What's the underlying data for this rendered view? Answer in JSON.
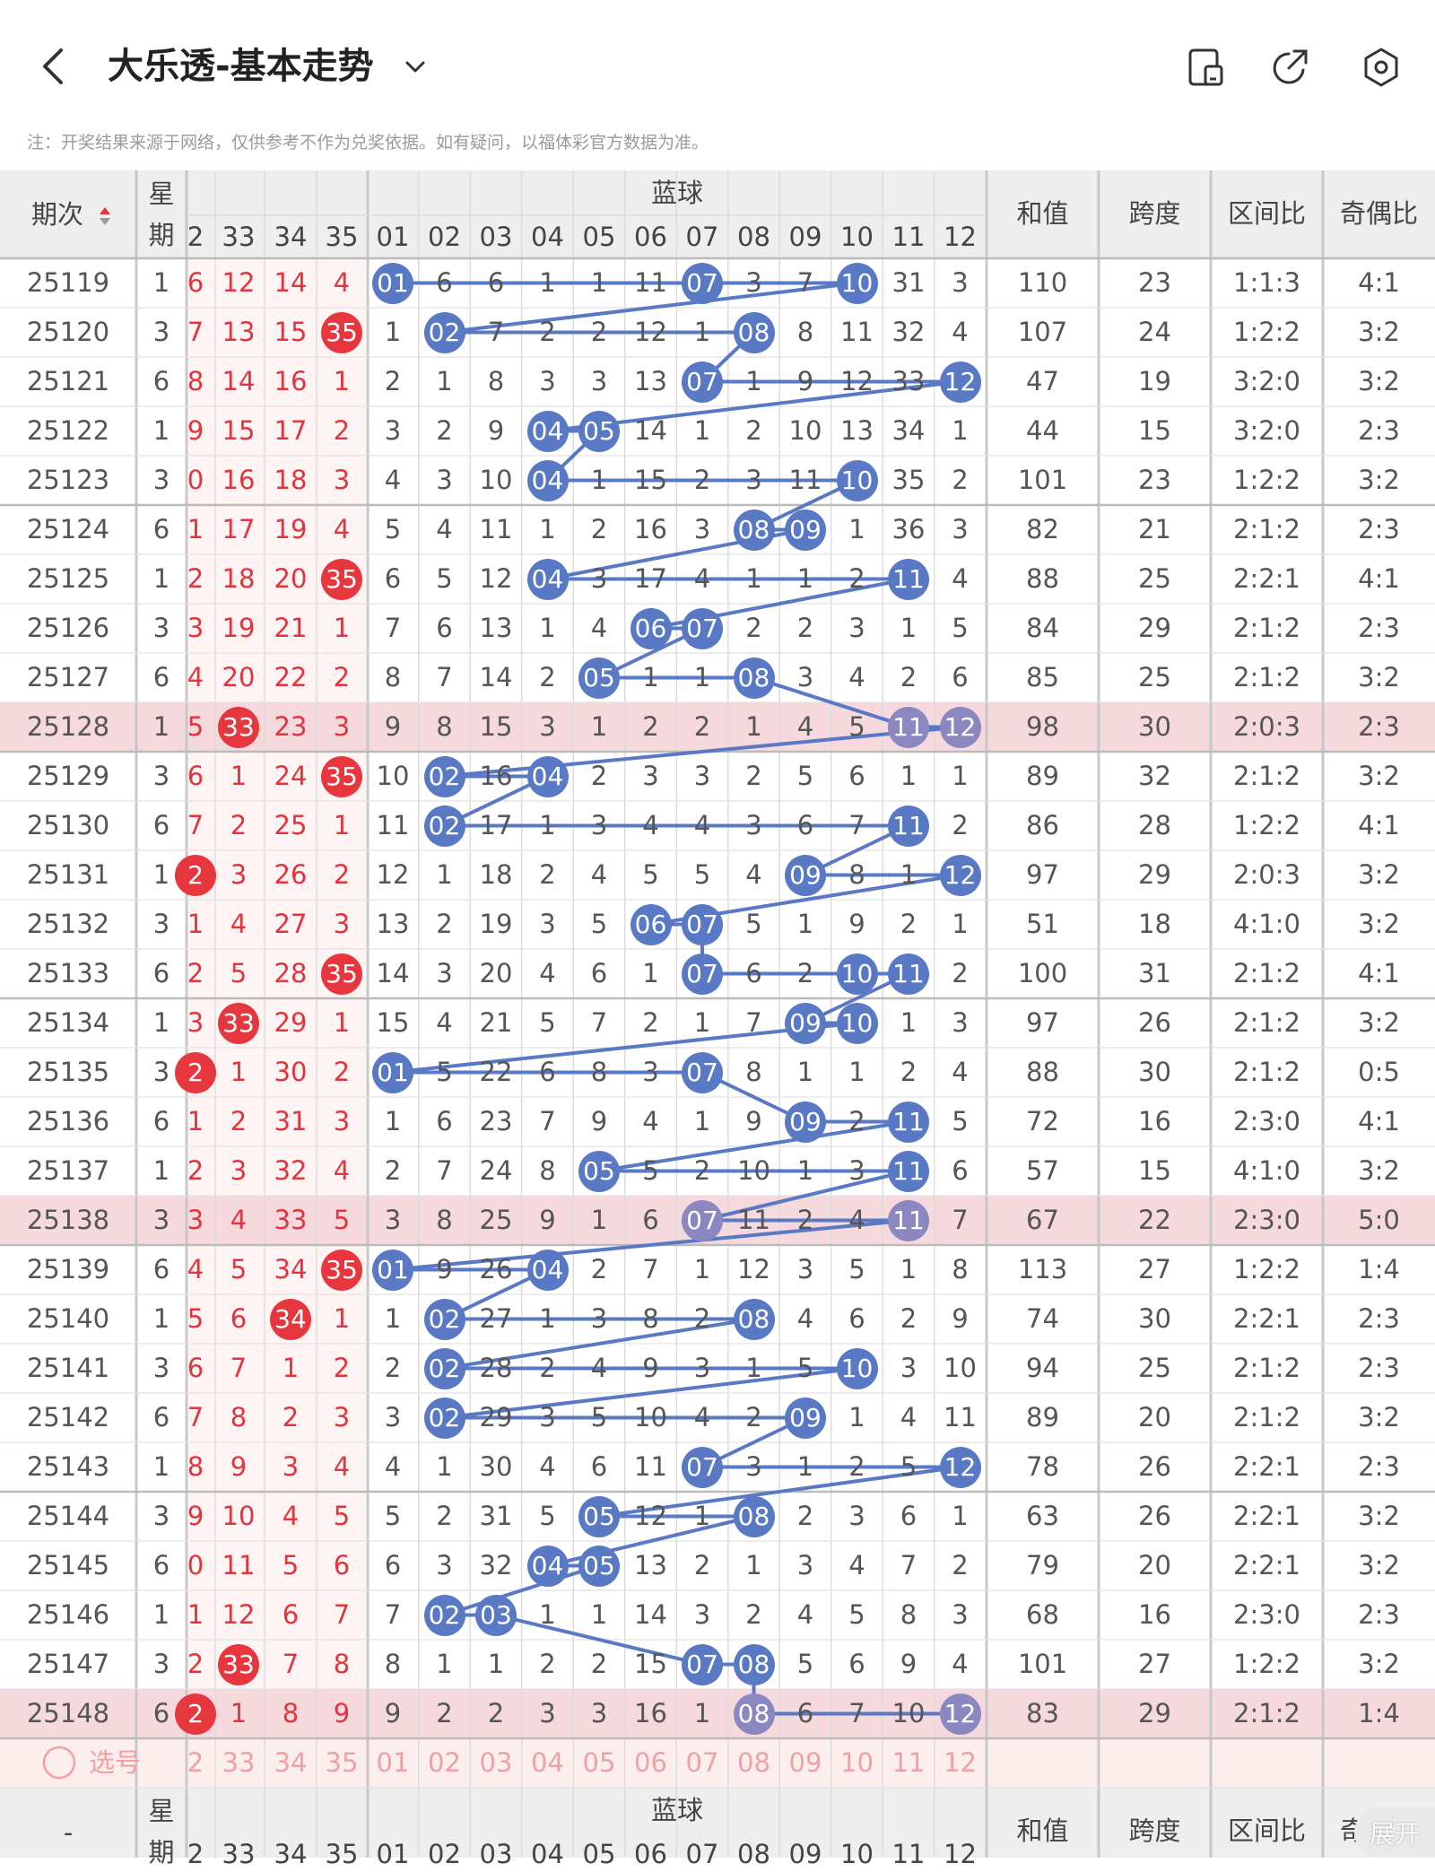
{
  "header": {
    "title": "大乐透-基本走势",
    "back_icon": "chevron-left-icon",
    "dropdown_icon": "chevron-down-icon",
    "icons": [
      "doc-icon",
      "share-icon",
      "settings-icon"
    ]
  },
  "note": "注：开奖结果来源于网络，仅供参考不作为兑奖依据。如有疑问，以福体彩官方数据为准。",
  "table": {
    "col_issue": "期次",
    "col_week": "星期",
    "blue_group": "蓝球",
    "red_partial_headers": [
      "2",
      "33",
      "34",
      "35"
    ],
    "blue_headers": [
      "01",
      "02",
      "03",
      "04",
      "05",
      "06",
      "07",
      "08",
      "09",
      "10",
      "11",
      "12"
    ],
    "col_sum": "和值",
    "col_span": "跨度",
    "col_zone": "区间比",
    "col_odd": "奇偶比",
    "rows": [
      {
        "issue": "25119",
        "week": "1",
        "red": [
          "6",
          "12",
          "14",
          "4"
        ],
        "blue": [
          "01",
          "6",
          "6",
          "1",
          "1",
          "11",
          "07",
          "3",
          "7",
          "10",
          "31",
          "3"
        ],
        "sum": "110",
        "span": "23",
        "zone": "1:1:3",
        "odd": "4:1"
      },
      {
        "issue": "25120",
        "week": "3",
        "red": [
          "7",
          "13",
          "15",
          "35"
        ],
        "blue": [
          "1",
          "02",
          "7",
          "2",
          "2",
          "12",
          "1",
          "08",
          "8",
          "11",
          "32",
          "4"
        ],
        "sum": "107",
        "span": "24",
        "zone": "1:2:2",
        "odd": "3:2"
      },
      {
        "issue": "25121",
        "week": "6",
        "red": [
          "8",
          "14",
          "16",
          "1"
        ],
        "blue": [
          "2",
          "1",
          "8",
          "3",
          "3",
          "13",
          "07",
          "1",
          "9",
          "12",
          "33",
          "12"
        ],
        "sum": "47",
        "span": "19",
        "zone": "3:2:0",
        "odd": "3:2"
      },
      {
        "issue": "25122",
        "week": "1",
        "red": [
          "9",
          "15",
          "17",
          "2"
        ],
        "blue": [
          "3",
          "2",
          "9",
          "04",
          "05",
          "14",
          "1",
          "2",
          "10",
          "13",
          "34",
          "1"
        ],
        "sum": "44",
        "span": "15",
        "zone": "3:2:0",
        "odd": "2:3"
      },
      {
        "issue": "25123",
        "week": "3",
        "red": [
          "0",
          "16",
          "18",
          "3"
        ],
        "blue": [
          "4",
          "3",
          "10",
          "04",
          "1",
          "15",
          "2",
          "3",
          "11",
          "10",
          "35",
          "2"
        ],
        "sum": "101",
        "span": "23",
        "zone": "1:2:2",
        "odd": "3:2"
      },
      {
        "issue": "25124",
        "week": "6",
        "red": [
          "1",
          "17",
          "19",
          "4"
        ],
        "blue": [
          "5",
          "4",
          "11",
          "1",
          "2",
          "16",
          "3",
          "08",
          "09",
          "1",
          "36",
          "3"
        ],
        "sum": "82",
        "span": "21",
        "zone": "2:1:2",
        "odd": "2:3"
      },
      {
        "issue": "25125",
        "week": "1",
        "red": [
          "2",
          "18",
          "20",
          "35"
        ],
        "blue": [
          "6",
          "5",
          "12",
          "04",
          "3",
          "17",
          "4",
          "1",
          "1",
          "2",
          "11",
          "4"
        ],
        "sum": "88",
        "span": "25",
        "zone": "2:2:1",
        "odd": "4:1"
      },
      {
        "issue": "25126",
        "week": "3",
        "red": [
          "3",
          "19",
          "21",
          "1"
        ],
        "blue": [
          "7",
          "6",
          "13",
          "1",
          "4",
          "06",
          "07",
          "2",
          "2",
          "3",
          "1",
          "5"
        ],
        "sum": "84",
        "span": "29",
        "zone": "2:1:2",
        "odd": "2:3"
      },
      {
        "issue": "25127",
        "week": "6",
        "red": [
          "4",
          "20",
          "22",
          "2"
        ],
        "blue": [
          "8",
          "7",
          "14",
          "2",
          "05",
          "1",
          "1",
          "08",
          "3",
          "4",
          "2",
          "6"
        ],
        "sum": "85",
        "span": "25",
        "zone": "2:1:2",
        "odd": "3:2"
      },
      {
        "issue": "25128",
        "week": "1",
        "red": [
          "5",
          "33",
          "23",
          "3"
        ],
        "blue": [
          "9",
          "8",
          "15",
          "3",
          "1",
          "2",
          "2",
          "1",
          "4",
          "5",
          "11",
          "12"
        ],
        "sum": "98",
        "span": "30",
        "zone": "2:0:3",
        "odd": "2:3"
      },
      {
        "issue": "25129",
        "week": "3",
        "red": [
          "6",
          "1",
          "24",
          "35"
        ],
        "blue": [
          "10",
          "02",
          "16",
          "04",
          "2",
          "3",
          "3",
          "2",
          "5",
          "6",
          "1",
          "1"
        ],
        "sum": "89",
        "span": "32",
        "zone": "2:1:2",
        "odd": "3:2"
      },
      {
        "issue": "25130",
        "week": "6",
        "red": [
          "7",
          "2",
          "25",
          "1"
        ],
        "blue": [
          "11",
          "02",
          "17",
          "1",
          "3",
          "4",
          "4",
          "3",
          "6",
          "7",
          "11",
          "2"
        ],
        "sum": "86",
        "span": "28",
        "zone": "1:2:2",
        "odd": "4:1"
      },
      {
        "issue": "25131",
        "week": "1",
        "red": [
          "2",
          "3",
          "26",
          "2"
        ],
        "blue": [
          "12",
          "1",
          "18",
          "2",
          "4",
          "5",
          "5",
          "4",
          "09",
          "8",
          "1",
          "12"
        ],
        "sum": "97",
        "span": "29",
        "zone": "2:0:3",
        "odd": "3:2"
      },
      {
        "issue": "25132",
        "week": "3",
        "red": [
          "1",
          "4",
          "27",
          "3"
        ],
        "blue": [
          "13",
          "2",
          "19",
          "3",
          "5",
          "06",
          "07",
          "5",
          "1",
          "9",
          "2",
          "1"
        ],
        "sum": "51",
        "span": "18",
        "zone": "4:1:0",
        "odd": "3:2"
      },
      {
        "issue": "25133",
        "week": "6",
        "red": [
          "2",
          "5",
          "28",
          "35"
        ],
        "blue": [
          "14",
          "3",
          "20",
          "4",
          "6",
          "1",
          "07",
          "6",
          "2",
          "10",
          "11",
          "2"
        ],
        "sum": "100",
        "span": "31",
        "zone": "2:1:2",
        "odd": "4:1"
      },
      {
        "issue": "25134",
        "week": "1",
        "red": [
          "3",
          "33",
          "29",
          "1"
        ],
        "blue": [
          "15",
          "4",
          "21",
          "5",
          "7",
          "2",
          "1",
          "7",
          "09",
          "10",
          "1",
          "3"
        ],
        "sum": "97",
        "span": "26",
        "zone": "2:1:2",
        "odd": "3:2"
      },
      {
        "issue": "25135",
        "week": "3",
        "red": [
          "2",
          "1",
          "30",
          "2"
        ],
        "blue": [
          "01",
          "5",
          "22",
          "6",
          "8",
          "3",
          "07",
          "8",
          "1",
          "1",
          "2",
          "4"
        ],
        "sum": "88",
        "span": "30",
        "zone": "2:1:2",
        "odd": "0:5"
      },
      {
        "issue": "25136",
        "week": "6",
        "red": [
          "1",
          "2",
          "31",
          "3"
        ],
        "blue": [
          "1",
          "6",
          "23",
          "7",
          "9",
          "4",
          "1",
          "9",
          "09",
          "2",
          "11",
          "5"
        ],
        "sum": "72",
        "span": "16",
        "zone": "2:3:0",
        "odd": "4:1"
      },
      {
        "issue": "25137",
        "week": "1",
        "red": [
          "2",
          "3",
          "32",
          "4"
        ],
        "blue": [
          "2",
          "7",
          "24",
          "8",
          "05",
          "5",
          "2",
          "10",
          "1",
          "3",
          "11",
          "6"
        ],
        "sum": "57",
        "span": "15",
        "zone": "4:1:0",
        "odd": "3:2"
      },
      {
        "issue": "25138",
        "week": "3",
        "red": [
          "3",
          "4",
          "33",
          "5"
        ],
        "blue": [
          "3",
          "8",
          "25",
          "9",
          "1",
          "6",
          "07",
          "11",
          "2",
          "4",
          "11",
          "7"
        ],
        "sum": "67",
        "span": "22",
        "zone": "2:3:0",
        "odd": "5:0"
      },
      {
        "issue": "25139",
        "week": "6",
        "red": [
          "4",
          "5",
          "34",
          "35"
        ],
        "blue": [
          "01",
          "9",
          "26",
          "04",
          "2",
          "7",
          "1",
          "12",
          "3",
          "5",
          "1",
          "8"
        ],
        "sum": "113",
        "span": "27",
        "zone": "1:2:2",
        "odd": "1:4"
      },
      {
        "issue": "25140",
        "week": "1",
        "red": [
          "5",
          "6",
          "34",
          "1"
        ],
        "blue": [
          "1",
          "02",
          "27",
          "1",
          "3",
          "8",
          "2",
          "08",
          "4",
          "6",
          "2",
          "9"
        ],
        "sum": "74",
        "span": "30",
        "zone": "2:2:1",
        "odd": "2:3"
      },
      {
        "issue": "25141",
        "week": "3",
        "red": [
          "6",
          "7",
          "1",
          "2"
        ],
        "blue": [
          "2",
          "02",
          "28",
          "2",
          "4",
          "9",
          "3",
          "1",
          "5",
          "10",
          "3",
          "10"
        ],
        "sum": "94",
        "span": "25",
        "zone": "2:1:2",
        "odd": "2:3"
      },
      {
        "issue": "25142",
        "week": "6",
        "red": [
          "7",
          "8",
          "2",
          "3"
        ],
        "blue": [
          "3",
          "02",
          "29",
          "3",
          "5",
          "10",
          "4",
          "2",
          "09",
          "1",
          "4",
          "11"
        ],
        "sum": "89",
        "span": "20",
        "zone": "2:1:2",
        "odd": "3:2"
      },
      {
        "issue": "25143",
        "week": "1",
        "red": [
          "8",
          "9",
          "3",
          "4"
        ],
        "blue": [
          "4",
          "1",
          "30",
          "4",
          "6",
          "11",
          "07",
          "3",
          "1",
          "2",
          "5",
          "12"
        ],
        "sum": "78",
        "span": "26",
        "zone": "2:2:1",
        "odd": "2:3"
      },
      {
        "issue": "25144",
        "week": "3",
        "red": [
          "9",
          "10",
          "4",
          "5"
        ],
        "blue": [
          "5",
          "2",
          "31",
          "5",
          "05",
          "12",
          "1",
          "08",
          "2",
          "3",
          "6",
          "1"
        ],
        "sum": "63",
        "span": "26",
        "zone": "2:2:1",
        "odd": "3:2"
      },
      {
        "issue": "25145",
        "week": "6",
        "red": [
          "0",
          "11",
          "5",
          "6"
        ],
        "blue": [
          "6",
          "3",
          "32",
          "04",
          "05",
          "13",
          "2",
          "1",
          "3",
          "4",
          "7",
          "2"
        ],
        "sum": "79",
        "span": "20",
        "zone": "2:2:1",
        "odd": "3:2"
      },
      {
        "issue": "25146",
        "week": "1",
        "red": [
          "1",
          "12",
          "6",
          "7"
        ],
        "blue": [
          "7",
          "02",
          "03",
          "1",
          "1",
          "14",
          "3",
          "2",
          "4",
          "5",
          "8",
          "3"
        ],
        "sum": "68",
        "span": "16",
        "zone": "2:3:0",
        "odd": "2:3"
      },
      {
        "issue": "25147",
        "week": "3",
        "red": [
          "2",
          "33",
          "7",
          "8"
        ],
        "blue": [
          "8",
          "1",
          "1",
          "2",
          "2",
          "15",
          "07",
          "08",
          "5",
          "6",
          "9",
          "4"
        ],
        "sum": "101",
        "span": "27",
        "zone": "1:2:2",
        "odd": "3:2"
      },
      {
        "issue": "25148",
        "week": "6",
        "red": [
          "2",
          "1",
          "8",
          "9"
        ],
        "blue": [
          "9",
          "2",
          "2",
          "3",
          "3",
          "16",
          "1",
          "08",
          "6",
          "7",
          "10",
          "12"
        ],
        "sum": "83",
        "span": "29",
        "zone": "2:1:2",
        "odd": "1:4"
      }
    ],
    "red_ball_marks": [
      [
        1,
        3
      ],
      [
        6,
        3
      ],
      [
        9,
        1
      ],
      [
        10,
        3
      ],
      [
        12,
        0
      ],
      [
        14,
        3
      ],
      [
        15,
        1
      ],
      [
        16,
        0
      ],
      [
        20,
        3
      ],
      [
        21,
        2
      ],
      [
        28,
        1
      ],
      [
        29,
        0
      ]
    ],
    "highlight_rows": [
      9,
      19,
      29
    ],
    "select_label": "选号",
    "expand_label": "展开",
    "footer_issue": "-"
  },
  "colors": {
    "blue_ball": "#5a79c4",
    "red_ball": "#e6373f",
    "header_bg": "#eeeeee",
    "highlight_row": "#f5d9dc"
  }
}
